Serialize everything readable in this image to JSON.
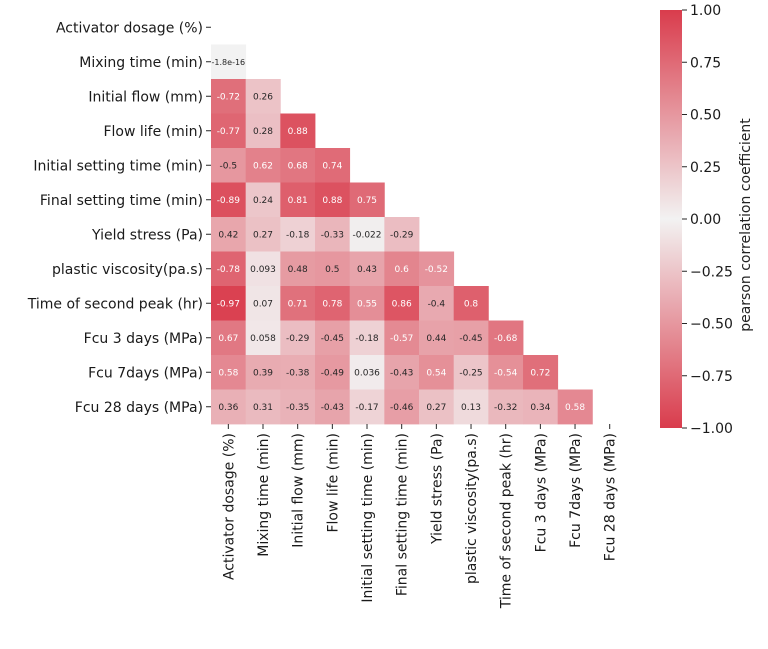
{
  "chart_data": {
    "type": "heatmap",
    "title": "",
    "variables": [
      "Activator dosage (%)",
      "Mixing time (min)",
      "Initial flow (mm)",
      "Flow life (min)",
      "Initial setting time (min)",
      "Final setting time (min)",
      "Yield stress (Pa)",
      "plastic viscosity(pa.s)",
      "Time of second peak (hr)",
      "Fcu 3 days (MPa)",
      "Fcu 7days (MPa)",
      "Fcu 28 days (MPa)"
    ],
    "values": [
      [],
      [
        -1.8e-16
      ],
      [
        -0.72,
        0.26
      ],
      [
        -0.77,
        0.28,
        0.88
      ],
      [
        -0.5,
        0.62,
        0.68,
        0.74
      ],
      [
        -0.89,
        0.24,
        0.81,
        0.88,
        0.75
      ],
      [
        0.42,
        0.27,
        -0.18,
        -0.33,
        -0.022,
        -0.29
      ],
      [
        -0.78,
        0.093,
        0.48,
        0.5,
        0.43,
        0.6,
        -0.52
      ],
      [
        -0.97,
        0.07,
        0.71,
        0.78,
        0.55,
        0.86,
        -0.4,
        0.8
      ],
      [
        0.67,
        0.058,
        -0.29,
        -0.45,
        -0.18,
        -0.57,
        0.44,
        -0.45,
        -0.68
      ],
      [
        0.58,
        0.39,
        -0.38,
        -0.49,
        0.036,
        -0.43,
        0.54,
        -0.25,
        -0.54,
        0.72
      ],
      [
        0.36,
        0.31,
        -0.35,
        -0.43,
        -0.17,
        -0.46,
        0.27,
        0.13,
        -0.32,
        0.34,
        0.58
      ]
    ],
    "value_labels": [
      [],
      [
        "-1.8e-16"
      ],
      [
        "-0.72",
        "0.26"
      ],
      [
        "-0.77",
        "0.28",
        "0.88"
      ],
      [
        "-0.5",
        "0.62",
        "0.68",
        "0.74"
      ],
      [
        "-0.89",
        "0.24",
        "0.81",
        "0.88",
        "0.75"
      ],
      [
        "0.42",
        "0.27",
        "-0.18",
        "-0.33",
        "-0.022",
        "-0.29"
      ],
      [
        "-0.78",
        "0.093",
        "0.48",
        "0.5",
        "0.43",
        "0.6",
        "-0.52"
      ],
      [
        "-0.97",
        "0.07",
        "0.71",
        "0.78",
        "0.55",
        "0.86",
        "-0.4",
        "0.8"
      ],
      [
        "0.67",
        "0.058",
        "-0.29",
        "-0.45",
        "-0.18",
        "-0.57",
        "0.44",
        "-0.45",
        "-0.68"
      ],
      [
        "0.58",
        "0.39",
        "-0.38",
        "-0.49",
        "0.036",
        "-0.43",
        "0.54",
        "-0.25",
        "-0.54",
        "0.72"
      ],
      [
        "0.36",
        "0.31",
        "-0.35",
        "-0.43",
        "-0.17",
        "-0.46",
        "0.27",
        "0.13",
        "-0.32",
        "0.34",
        "0.58"
      ]
    ],
    "mask": "upper-triangle-including-diagonal",
    "colorbar": {
      "label": "pearson correlation coefficient",
      "vmin": -1.0,
      "vmax": 1.0,
      "ticks": [
        1.0,
        0.75,
        0.5,
        0.25,
        0.0,
        -0.25,
        -0.5,
        -0.75,
        -1.0
      ],
      "tick_labels": [
        "1.00",
        "0.75",
        "0.50",
        "0.25",
        "0.00",
        "−0.25",
        "−0.50",
        "−0.75",
        "−1.00"
      ],
      "colors": {
        "negative": "#d93c4c",
        "center": "#f2f2f2",
        "positive": "#d93c4c"
      }
    },
    "xlabel": "",
    "ylabel": ""
  }
}
